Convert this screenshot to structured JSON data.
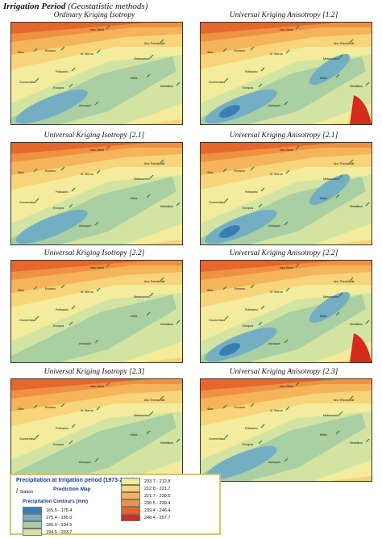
{
  "page": {
    "title_main": "Irrigation Period",
    "title_sub": "(Geostatistic methods)"
  },
  "panels": [
    {
      "title": "Ordinary Kriging Isotropy",
      "low_blobs": 1,
      "high_right": false
    },
    {
      "title": "Universal Kriging Anisotropy [1.2]",
      "low_blobs": 2,
      "high_right": true
    },
    {
      "title": "Universal Kriging Isotropy [2.1]",
      "low_blobs": 1,
      "high_right": false
    },
    {
      "title": "Universal Kriging Anisotropy [2.1]",
      "low_blobs": 2,
      "high_right": false
    },
    {
      "title": "Universal Kriging Isotropy [2.2]",
      "low_blobs": 0,
      "high_right": false
    },
    {
      "title": "Universal Kriging Anisotropy [2.2]",
      "low_blobs": 2,
      "high_right": true
    },
    {
      "title": "Universal Kriging Isotropy [2.3]",
      "low_blobs": 0,
      "high_right": false
    },
    {
      "title": "Universal Kriging Anisotropy [2.3]",
      "low_blobs": 1,
      "high_right": false
    }
  ],
  "stations": [
    "Nea Zichni",
    "Sitra",
    "Evosmo",
    "M. Sterna",
    "Ano Theodoraki",
    "Metaxochori",
    "Polikastro",
    "Kilkis",
    "Goumenissa",
    "Evropos",
    "Metallikos",
    "Axioupoli"
  ],
  "legend": {
    "title": "Precipitation at Irrigation period (1973-2008)",
    "station_label": "Station",
    "map_label": "Prediction Map",
    "contours_label": "Precipitation Contours (mm)",
    "classes": [
      {
        "range": "165.5 - 175.4",
        "color": "#3a7fb4"
      },
      {
        "range": "175.4 - 185.0",
        "color": "#74aec2"
      },
      {
        "range": "185.0 - 194.5",
        "color": "#a9cfa3"
      },
      {
        "range": "194.5 - 203.7",
        "color": "#d3e4a2"
      },
      {
        "range": "203.7 - 212.8",
        "color": "#f2ec9c"
      },
      {
        "range": "212.8 - 221.7",
        "color": "#f8d47a"
      },
      {
        "range": "221.7 - 230.5",
        "color": "#f5b35a"
      },
      {
        "range": "230.5 - 239.4",
        "color": "#ef9143"
      },
      {
        "range": "239.4 - 248.4",
        "color": "#e5672d"
      },
      {
        "range": "248.4 - 257.7",
        "color": "#d42b1c"
      }
    ]
  }
}
